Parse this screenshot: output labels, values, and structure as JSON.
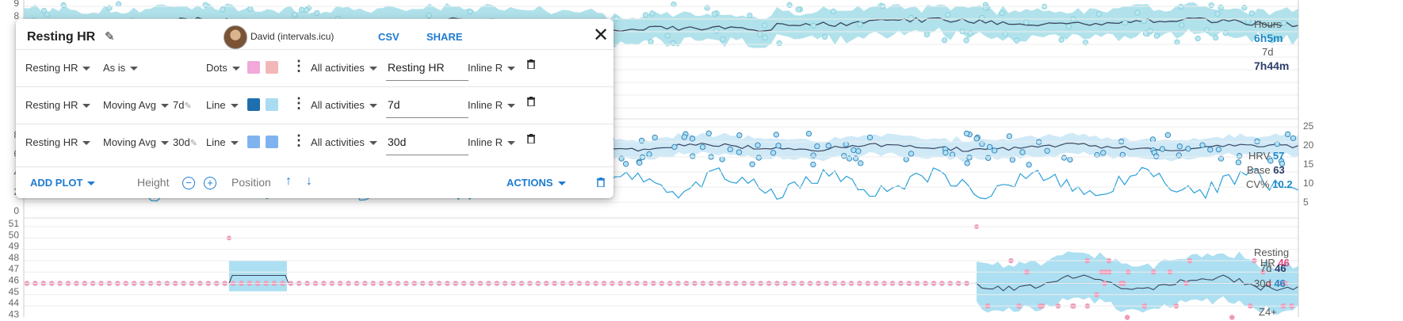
{
  "top_chart": {
    "y_ticks": [
      "9",
      "8"
    ],
    "side": {
      "hours_label": "Hours",
      "hours_value": "6h5m",
      "period": "7d",
      "period_value": "7h44m"
    }
  },
  "hrv_chart": {
    "left_ticks": [
      "8",
      "6",
      "4",
      "2",
      "0"
    ],
    "right_ticks": [
      "25",
      "20",
      "15",
      "10",
      "5"
    ],
    "side": {
      "hrv_label": "HRV",
      "hrv_value": "57",
      "base_label": "Base",
      "base_value": "63",
      "cv_label": "CV%",
      "cv_value": "10.2"
    }
  },
  "resting_chart": {
    "y_ticks": [
      "51",
      "50",
      "49",
      "48",
      "47",
      "46",
      "45",
      "44",
      "43"
    ],
    "side": {
      "resting_label": "Resting",
      "hr_label": "HR",
      "hr_value": "46",
      "d7_label": "7d",
      "d7_value": "46",
      "d30_label": "30d",
      "d30_value": "46",
      "z4_label": "Z4+"
    }
  },
  "panel": {
    "title": "Resting HR",
    "user": "David (intervals.icu)",
    "csv": "CSV",
    "share": "SHARE",
    "rows": [
      {
        "field": "Resting HR",
        "transform": "As is",
        "window": "",
        "style": "Dots",
        "color1": "#f1a9d9",
        "color2": "#f2b8b8",
        "filter": "All activities",
        "label": "Resting HR",
        "position": "Inline R"
      },
      {
        "field": "Resting HR",
        "transform": "Moving Avg",
        "window": "7d",
        "style": "Line",
        "color1": "#1f6fae",
        "color2": "#a9dcf2",
        "filter": "All activities",
        "label": "7d",
        "position": "Inline R"
      },
      {
        "field": "Resting HR",
        "transform": "Moving Avg",
        "window": "30d",
        "style": "Line",
        "color1": "#7fb3f0",
        "color2": "#7fb3f0",
        "filter": "All activities",
        "label": "30d",
        "position": "Inline R"
      }
    ],
    "footer": {
      "add_plot": "ADD PLOT",
      "height": "Height",
      "position": "Position",
      "actions": "ACTIONS"
    }
  },
  "colors": {
    "accent": "#1e7bd1",
    "band": "#a3dde8",
    "dot_pink": "#f29ab8",
    "line_dark": "#3a4660"
  }
}
